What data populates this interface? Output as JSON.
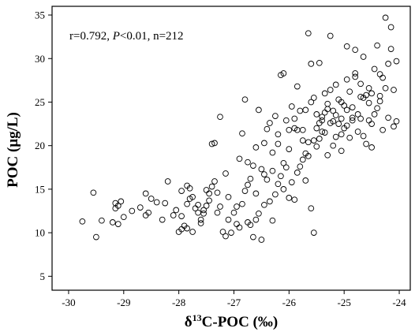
{
  "chart_data": {
    "type": "scatter",
    "title": "",
    "xlabel": {
      "pre": "δ",
      "sup": "13",
      "post": "C-POC (‰)"
    },
    "ylabel": "POC (μg/L)",
    "xlim": [
      -30.3,
      -23.8
    ],
    "ylim": [
      3.4,
      36
    ],
    "x_ticks": [
      -30,
      -29,
      -28,
      -27,
      -26,
      -25,
      -24
    ],
    "y_ticks": [
      5,
      10,
      15,
      20,
      25,
      30,
      35
    ],
    "grid": false,
    "legend": "none",
    "marker": "open-circle",
    "annotation": {
      "r": "r=0.792, ",
      "p_italic": "P",
      "rest": "<0.01, n=212"
    },
    "points": [
      [
        -29.75,
        11.3
      ],
      [
        -29.55,
        14.6
      ],
      [
        -29.5,
        9.5
      ],
      [
        -29.4,
        11.4
      ],
      [
        -29.2,
        11.2
      ],
      [
        -29.15,
        12.8
      ],
      [
        -29.1,
        13.1
      ],
      [
        -29.15,
        13.4
      ],
      [
        -29.05,
        13.6
      ],
      [
        -29.1,
        11.0
      ],
      [
        -29.0,
        11.8
      ],
      [
        -28.85,
        12.5
      ],
      [
        -28.7,
        12.9
      ],
      [
        -28.6,
        12.0
      ],
      [
        -28.55,
        12.3
      ],
      [
        -28.6,
        14.5
      ],
      [
        -28.5,
        13.9
      ],
      [
        -28.4,
        13.5
      ],
      [
        -28.3,
        11.5
      ],
      [
        -28.25,
        13.4
      ],
      [
        -28.2,
        15.9
      ],
      [
        -28.1,
        12.0
      ],
      [
        -28.05,
        12.6
      ],
      [
        -28.0,
        10.1
      ],
      [
        -27.95,
        10.4
      ],
      [
        -27.9,
        10.8
      ],
      [
        -27.85,
        10.5
      ],
      [
        -27.75,
        10.1
      ],
      [
        -27.95,
        14.8
      ],
      [
        -27.85,
        13.3
      ],
      [
        -27.8,
        13.9
      ],
      [
        -27.85,
        15.4
      ],
      [
        -27.8,
        15.1
      ],
      [
        -27.75,
        14.1
      ],
      [
        -27.7,
        12.8
      ],
      [
        -27.65,
        12.3
      ],
      [
        -27.6,
        11.5
      ],
      [
        -27.6,
        11.1
      ],
      [
        -27.55,
        12.2
      ],
      [
        -27.5,
        13.1
      ],
      [
        -27.55,
        12.6
      ],
      [
        -27.45,
        14.5
      ],
      [
        -27.45,
        13.7
      ],
      [
        -27.4,
        15.3
      ],
      [
        -27.35,
        15.9
      ],
      [
        -27.3,
        14.6
      ],
      [
        -27.3,
        12.3
      ],
      [
        -27.25,
        13.0
      ],
      [
        -27.2,
        10.1
      ],
      [
        -27.15,
        9.6
      ],
      [
        -27.1,
        11.5
      ],
      [
        -27.05,
        10.0
      ],
      [
        -27.0,
        12.3
      ],
      [
        -26.95,
        11.0
      ],
      [
        -26.9,
        10.6
      ],
      [
        -26.85,
        13.3
      ],
      [
        -26.8,
        14.8
      ],
      [
        -26.75,
        15.5
      ],
      [
        -26.75,
        11.2
      ],
      [
        -26.7,
        10.9
      ],
      [
        -26.65,
        9.5
      ],
      [
        -26.6,
        11.5
      ],
      [
        -26.55,
        12.2
      ],
      [
        -26.5,
        9.2
      ],
      [
        -26.45,
        13.2
      ],
      [
        -26.4,
        16.1
      ],
      [
        -26.35,
        13.6
      ],
      [
        -26.3,
        11.4
      ],
      [
        -26.25,
        14.4
      ],
      [
        -26.2,
        15.6
      ],
      [
        -26.15,
        16.5
      ],
      [
        -26.1,
        18.0
      ],
      [
        -26.05,
        17.5
      ],
      [
        -26.0,
        14.0
      ],
      [
        -25.95,
        15.8
      ],
      [
        -25.9,
        13.8
      ],
      [
        -25.85,
        16.9
      ],
      [
        -25.8,
        17.6
      ],
      [
        -25.75,
        18.4
      ],
      [
        -25.7,
        19.1
      ],
      [
        -25.65,
        20.4
      ],
      [
        -25.6,
        12.8
      ],
      [
        -25.55,
        10.0
      ],
      [
        -25.5,
        22.0
      ],
      [
        -25.45,
        20.8
      ],
      [
        -25.4,
        23.3
      ],
      [
        -25.35,
        21.5
      ],
      [
        -25.3,
        18.9
      ],
      [
        -25.25,
        22.6
      ],
      [
        -25.2,
        24.0
      ],
      [
        -25.15,
        21.0
      ],
      [
        -25.1,
        25.3
      ],
      [
        -25.05,
        23.1
      ],
      [
        -25.0,
        24.6
      ],
      [
        -24.95,
        22.3
      ],
      [
        -24.9,
        26.2
      ],
      [
        -24.85,
        24.4
      ],
      [
        -24.8,
        28.3
      ],
      [
        -24.75,
        23.6
      ],
      [
        -24.7,
        27.1
      ],
      [
        -24.65,
        30.2
      ],
      [
        -24.6,
        25.8
      ],
      [
        -24.55,
        26.6
      ],
      [
        -24.5,
        22.5
      ],
      [
        -24.45,
        28.8
      ],
      [
        -24.4,
        31.5
      ],
      [
        -24.35,
        25.1
      ],
      [
        -24.3,
        27.8
      ],
      [
        -24.25,
        34.7
      ],
      [
        -24.2,
        29.4
      ],
      [
        -24.15,
        33.6
      ],
      [
        -24.05,
        29.7
      ],
      [
        -24.05,
        22.8
      ],
      [
        -24.1,
        26.4
      ],
      [
        -27.95,
        11.9
      ],
      [
        -27.65,
        13.2
      ],
      [
        -27.5,
        14.9
      ],
      [
        -27.4,
        20.2
      ],
      [
        -27.35,
        20.3
      ],
      [
        -27.25,
        23.3
      ],
      [
        -27.15,
        16.8
      ],
      [
        -27.1,
        14.1
      ],
      [
        -26.95,
        13.0
      ],
      [
        -26.9,
        18.5
      ],
      [
        -26.85,
        21.4
      ],
      [
        -26.8,
        25.3
      ],
      [
        -26.7,
        16.2
      ],
      [
        -26.65,
        17.7
      ],
      [
        -26.6,
        19.8
      ],
      [
        -26.55,
        24.1
      ],
      [
        -26.5,
        17.3
      ],
      [
        -26.45,
        20.3
      ],
      [
        -26.35,
        22.6
      ],
      [
        -26.3,
        19.2
      ],
      [
        -26.25,
        23.4
      ],
      [
        -26.2,
        20.2
      ],
      [
        -26.15,
        28.1
      ],
      [
        -26.1,
        28.3
      ],
      [
        -26.05,
        22.9
      ],
      [
        -26.0,
        19.6
      ],
      [
        -25.95,
        24.5
      ],
      [
        -25.9,
        22.0
      ],
      [
        -25.85,
        26.8
      ],
      [
        -25.8,
        24.0
      ],
      [
        -25.75,
        21.8
      ],
      [
        -25.7,
        24.1
      ],
      [
        -25.65,
        32.9
      ],
      [
        -25.6,
        29.4
      ],
      [
        -25.55,
        25.5
      ],
      [
        -25.5,
        23.6
      ],
      [
        -25.45,
        29.5
      ],
      [
        -25.4,
        21.6
      ],
      [
        -25.35,
        26.0
      ],
      [
        -25.3,
        24.2
      ],
      [
        -25.25,
        32.6
      ],
      [
        -25.2,
        22.8
      ],
      [
        -25.15,
        27.0
      ],
      [
        -25.1,
        22.5
      ],
      [
        -25.05,
        25.0
      ],
      [
        -25.0,
        22.0
      ],
      [
        -24.95,
        31.4
      ],
      [
        -24.9,
        20.9
      ],
      [
        -24.85,
        23.2
      ],
      [
        -24.8,
        31.0
      ],
      [
        -24.75,
        21.6
      ],
      [
        -24.7,
        23.1
      ],
      [
        -24.65,
        25.5
      ],
      [
        -24.6,
        20.2
      ],
      [
        -24.55,
        24.9
      ],
      [
        -24.5,
        26.0
      ],
      [
        -24.45,
        23.6
      ],
      [
        -24.4,
        24.3
      ],
      [
        -24.35,
        25.7
      ],
      [
        -24.3,
        21.8
      ],
      [
        -24.25,
        26.6
      ],
      [
        -24.2,
        23.2
      ],
      [
        -24.15,
        31.1
      ],
      [
        -24.1,
        22.2
      ],
      [
        -25.65,
        18.8
      ],
      [
        -25.55,
        20.6
      ],
      [
        -25.45,
        22.6
      ],
      [
        -25.35,
        23.8
      ],
      [
        -25.2,
        20.0
      ],
      [
        -25.05,
        19.4
      ],
      [
        -24.95,
        27.6
      ],
      [
        -24.85,
        22.9
      ],
      [
        -24.7,
        25.6
      ],
      [
        -24.55,
        22.9
      ],
      [
        -26.75,
        18.1
      ],
      [
        -26.6,
        14.5
      ],
      [
        -26.45,
        16.7
      ],
      [
        -26.4,
        21.9
      ],
      [
        -26.3,
        17.1
      ],
      [
        -26.2,
        21.3
      ],
      [
        -26.1,
        15.0
      ],
      [
        -26.0,
        21.8
      ],
      [
        -25.9,
        23.1
      ],
      [
        -25.85,
        21.8
      ],
      [
        -25.75,
        20.6
      ],
      [
        -25.7,
        16.0
      ],
      [
        -25.6,
        25.0
      ],
      [
        -25.5,
        19.9
      ],
      [
        -25.4,
        22.9
      ],
      [
        -25.3,
        24.8
      ],
      [
        -25.25,
        26.4
      ],
      [
        -25.15,
        23.5
      ],
      [
        -25.05,
        21.3
      ],
      [
        -24.95,
        24.1
      ],
      [
        -24.8,
        27.9
      ],
      [
        -24.65,
        21.1
      ],
      [
        -24.5,
        19.8
      ],
      [
        -24.35,
        28.2
      ]
    ]
  }
}
